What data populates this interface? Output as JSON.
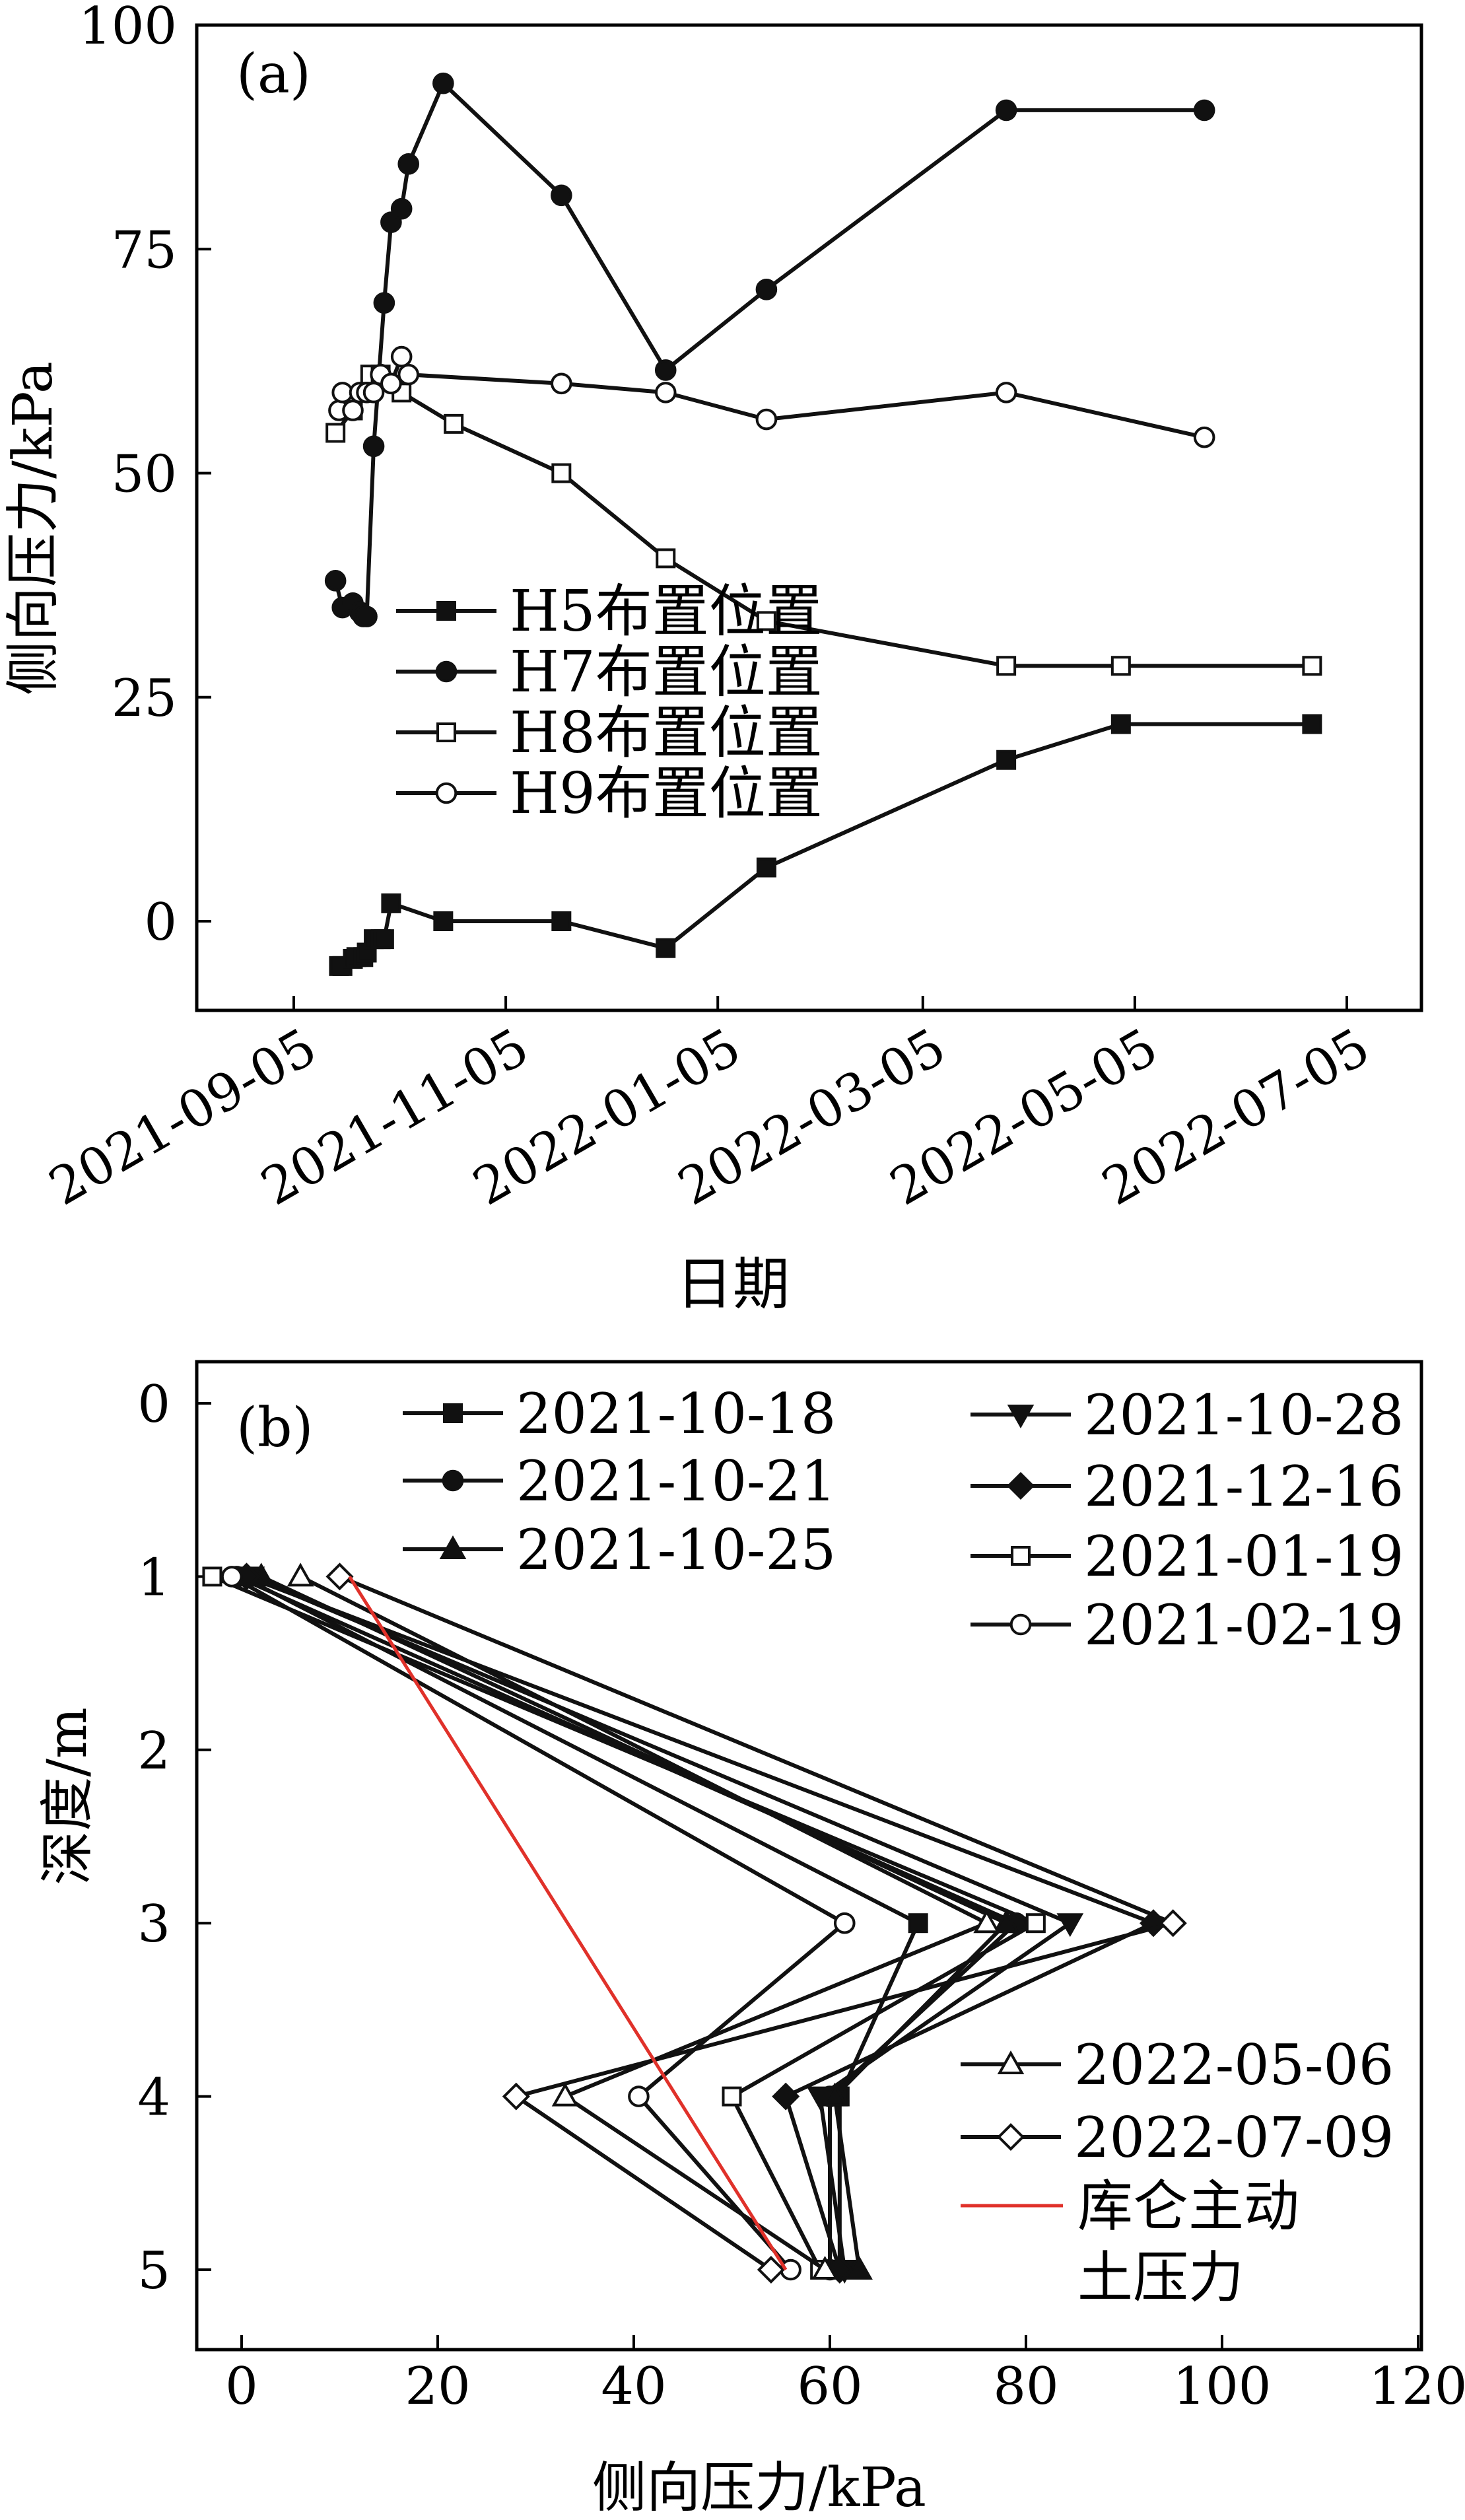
{
  "chart_data": [
    {
      "type": "line",
      "panel_label": "(a)",
      "xlabel": "日期",
      "ylabel": "侧向压力/kPa",
      "x_ticks": [
        "2021-09-05",
        "2021-11-05",
        "2022-01-05",
        "2022-03-05",
        "2022-05-05",
        "2022-07-05"
      ],
      "y_ticks": [
        "0",
        "25",
        "50",
        "75",
        "100"
      ],
      "ylim": [
        -10,
        100
      ],
      "series": [
        {
          "name": "H5布置位置",
          "marker": "square-filled",
          "color": "#111111",
          "x": [
            "2021-09-18",
            "2021-09-19",
            "2021-09-22",
            "2021-09-23",
            "2021-09-25",
            "2021-09-26",
            "2021-09-28",
            "2021-09-30",
            "2021-10-01",
            "2021-10-03",
            "2021-10-18",
            "2021-11-21",
            "2021-12-21",
            "2022-01-19",
            "2022-03-29",
            "2022-05-01",
            "2022-06-25"
          ],
          "y": [
            -5,
            -5,
            -4.2,
            -4,
            -4,
            -3.5,
            -2,
            -2,
            -2,
            2,
            0,
            0,
            -3,
            6,
            18,
            22,
            22
          ]
        },
        {
          "name": "H7布置位置",
          "marker": "circle-filled",
          "color": "#111111",
          "x": [
            "2021-09-17",
            "2021-09-19",
            "2021-09-22",
            "2021-09-24",
            "2021-09-25",
            "2021-09-26",
            "2021-09-28",
            "2021-10-01",
            "2021-10-03",
            "2021-10-06",
            "2021-10-08",
            "2021-10-18",
            "2021-11-21",
            "2021-12-21",
            "2022-01-19",
            "2022-03-29",
            "2022-05-25"
          ],
          "y": [
            38,
            35,
            35.5,
            34.5,
            34,
            34,
            53,
            69,
            78,
            79.5,
            84.5,
            93.5,
            81,
            61.5,
            70.5,
            90.5,
            90.5
          ]
        },
        {
          "name": "H8布置位置",
          "marker": "square-open",
          "color": "#111111",
          "x": [
            "2021-09-17",
            "2021-09-22",
            "2021-09-27",
            "2021-09-30",
            "2021-10-06",
            "2021-10-21",
            "2021-11-21",
            "2021-12-21",
            "2022-01-19",
            "2022-03-29",
            "2022-05-01",
            "2022-06-25"
          ],
          "y": [
            54.5,
            57,
            61,
            61,
            59,
            55.5,
            50,
            40.5,
            33.5,
            28.5,
            28.5,
            28.5
          ]
        },
        {
          "name": "H9布置位置",
          "marker": "circle-open",
          "color": "#111111",
          "x": [
            "2021-09-18",
            "2021-09-19",
            "2021-09-22",
            "2021-09-24",
            "2021-09-26",
            "2021-09-28",
            "2021-09-30",
            "2021-10-03",
            "2021-10-06",
            "2021-10-08",
            "2021-11-21",
            "2021-12-21",
            "2022-01-19",
            "2022-03-29",
            "2022-05-25"
          ],
          "y": [
            57,
            59,
            57,
            59,
            59,
            59,
            61,
            60,
            63,
            61,
            60,
            59,
            56,
            59,
            54
          ]
        }
      ]
    },
    {
      "type": "line",
      "panel_label": "(b)",
      "xlabel": "侧向压力/kPa",
      "ylabel": "深度/m",
      "x_ticks": [
        "0",
        "20",
        "40",
        "60",
        "80",
        "100",
        "120"
      ],
      "y_ticks": [
        "0",
        "1",
        "2",
        "3",
        "4",
        "5"
      ],
      "xlim": [
        -4,
        120
      ],
      "ylim": [
        5.5,
        -0.3
      ],
      "depth": [
        1,
        3,
        4,
        5
      ],
      "series": [
        {
          "name": "2021-10-18",
          "marker": "square-filled",
          "color": "#111111",
          "pressure": [
            0,
            69,
            61,
            61
          ]
        },
        {
          "name": "2021-10-21",
          "marker": "circle-filled",
          "color": "#111111",
          "pressure": [
            -0.5,
            79,
            60,
            60
          ]
        },
        {
          "name": "2021-10-25",
          "marker": "triangle-up-filled",
          "color": "#111111",
          "pressure": [
            2,
            78,
            60.5,
            63
          ]
        },
        {
          "name": "2021-10-28",
          "marker": "triangle-down-filled",
          "color": "#111111",
          "pressure": [
            1,
            84.5,
            59,
            61.5
          ]
        },
        {
          "name": "2021-12-16",
          "marker": "diamond-filled",
          "color": "#111111",
          "pressure": [
            0.5,
            93,
            55.5,
            61
          ]
        },
        {
          "name": "2021-01-19",
          "marker": "square-open",
          "color": "#111111",
          "pressure": [
            -3,
            81,
            50,
            59
          ]
        },
        {
          "name": "2021-02-19",
          "marker": "circle-open",
          "color": "#111111",
          "pressure": [
            -1,
            61.5,
            40.5,
            56
          ]
        },
        {
          "name": "2022-05-06",
          "marker": "triangle-up-open",
          "color": "#111111",
          "pressure": [
            6,
            76,
            33,
            59.5
          ]
        },
        {
          "name": "2022-07-09",
          "marker": "diamond-open",
          "color": "#111111",
          "pressure": [
            10,
            95,
            28,
            54
          ]
        },
        {
          "name": "库仑主动\n土压力",
          "marker": "none",
          "color": "#e0312a",
          "pressure": [
            11,
            55.5
          ],
          "depth": [
            1,
            5
          ]
        }
      ]
    }
  ]
}
